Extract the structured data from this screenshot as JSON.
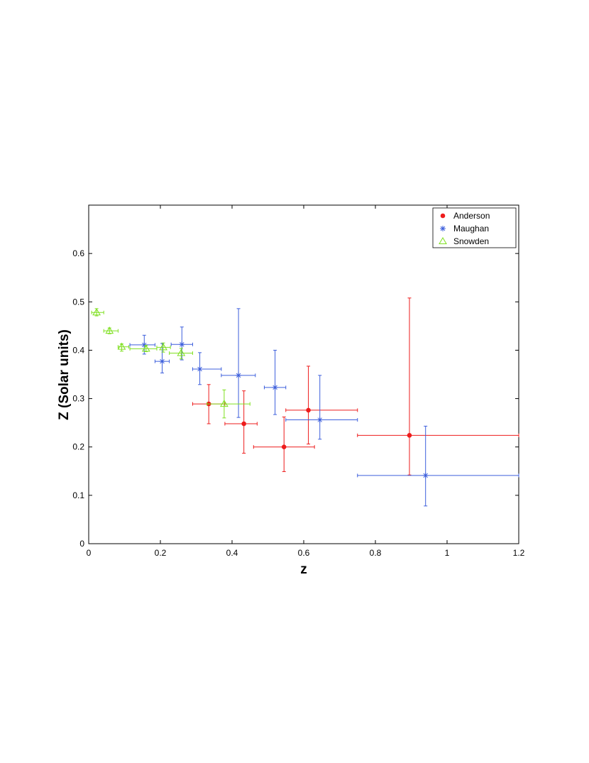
{
  "chart_data": {
    "type": "scatter",
    "title": "",
    "xlabel": "z",
    "ylabel": "Z (Solar units)",
    "xlim": [
      0,
      1.2
    ],
    "ylim": [
      0,
      0.7
    ],
    "xticks": [
      "0",
      "0.2",
      "0.4",
      "0.6",
      "0.8",
      "1",
      "1.2"
    ],
    "yticks": [
      "0",
      "0.1",
      "0.2",
      "0.3",
      "0.4",
      "0.5",
      "0.6"
    ],
    "grid": false,
    "legend_position": "top-right",
    "series": [
      {
        "name": "Anderson",
        "marker": "dot",
        "color": "#ee1c1c",
        "points": [
          {
            "x": 0.335,
            "y": 0.289,
            "xerr": [
              0.29,
              0.38
            ],
            "yerr": [
              0.248,
              0.329
            ]
          },
          {
            "x": 0.433,
            "y": 0.248,
            "xerr": [
              0.38,
              0.47
            ],
            "yerr": [
              0.187,
              0.316
            ]
          },
          {
            "x": 0.545,
            "y": 0.2,
            "xerr": [
              0.46,
              0.63
            ],
            "yerr": [
              0.149,
              0.262
            ]
          },
          {
            "x": 0.613,
            "y": 0.276,
            "xerr": [
              0.55,
              0.75
            ],
            "yerr": [
              0.206,
              0.367
            ]
          },
          {
            "x": 0.895,
            "y": 0.224,
            "xerr": [
              0.75,
              1.2
            ],
            "yerr": [
              0.142,
              0.508
            ]
          }
        ]
      },
      {
        "name": "Maughan",
        "marker": "star",
        "color": "#3d5fdc",
        "points": [
          {
            "x": 0.155,
            "y": 0.411,
            "xerr": [
              0.115,
              0.185
            ],
            "yerr": [
              0.392,
              0.431
            ]
          },
          {
            "x": 0.205,
            "y": 0.377,
            "xerr": [
              0.185,
              0.225
            ],
            "yerr": [
              0.353,
              0.414
            ]
          },
          {
            "x": 0.26,
            "y": 0.412,
            "xerr": [
              0.23,
              0.29
            ],
            "yerr": [
              0.38,
              0.448
            ]
          },
          {
            "x": 0.31,
            "y": 0.361,
            "xerr": [
              0.29,
              0.37
            ],
            "yerr": [
              0.329,
              0.395
            ]
          },
          {
            "x": 0.418,
            "y": 0.348,
            "xerr": [
              0.37,
              0.465
            ],
            "yerr": [
              0.261,
              0.486
            ]
          },
          {
            "x": 0.52,
            "y": 0.323,
            "xerr": [
              0.49,
              0.55
            ],
            "yerr": [
              0.267,
              0.4
            ]
          },
          {
            "x": 0.645,
            "y": 0.256,
            "xerr": [
              0.55,
              0.75
            ],
            "yerr": [
              0.216,
              0.348
            ]
          },
          {
            "x": 0.94,
            "y": 0.141,
            "xerr": [
              0.75,
              1.2
            ],
            "yerr": [
              0.078,
              0.243
            ]
          }
        ]
      },
      {
        "name": "Snowden",
        "marker": "triangle",
        "color": "#7fe020",
        "points": [
          {
            "x": 0.022,
            "y": 0.478,
            "xerr": [
              0.008,
              0.042
            ],
            "yerr": [
              0.471,
              0.486
            ]
          },
          {
            "x": 0.058,
            "y": 0.44,
            "xerr": [
              0.042,
              0.082
            ],
            "yerr": [
              0.434,
              0.446
            ]
          },
          {
            "x": 0.092,
            "y": 0.407,
            "xerr": [
              0.082,
              0.112
            ],
            "yerr": [
              0.398,
              0.413
            ]
          },
          {
            "x": 0.16,
            "y": 0.403,
            "xerr": [
              0.115,
              0.19
            ],
            "yerr": [
              0.397,
              0.41
            ]
          },
          {
            "x": 0.208,
            "y": 0.406,
            "xerr": [
              0.19,
              0.228
            ],
            "yerr": [
              0.396,
              0.415
            ]
          },
          {
            "x": 0.258,
            "y": 0.394,
            "xerr": [
              0.225,
              0.29
            ],
            "yerr": [
              0.382,
              0.404
            ]
          },
          {
            "x": 0.378,
            "y": 0.289,
            "xerr": [
              0.33,
              0.45
            ],
            "yerr": [
              0.26,
              0.318
            ]
          }
        ]
      }
    ]
  }
}
